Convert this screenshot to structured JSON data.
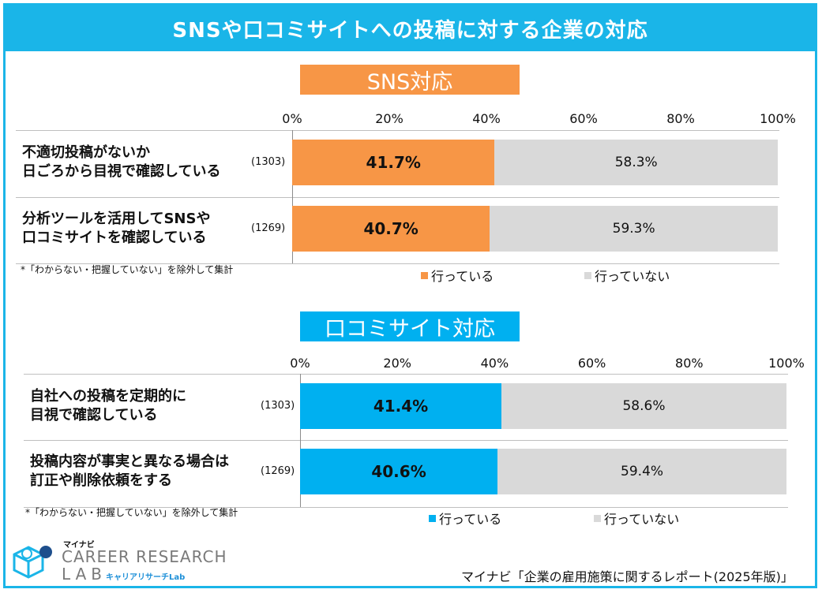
{
  "title": "SNSや口コミサイトへの投稿に対する企業の対応",
  "colors": {
    "sns": "#f79646",
    "kuchikomi": "#00b0f0",
    "not_done": "#d9d9d9",
    "frame": "#1ab5e8"
  },
  "chart_data": [
    {
      "type": "bar",
      "stacked": true,
      "orientation": "horizontal",
      "title": "SNS対応",
      "xlim": [
        0,
        100
      ],
      "ticks": [
        "0%",
        "20%",
        "40%",
        "60%",
        "80%",
        "100%"
      ],
      "categories": [
        "不適切投稿がないか\n日ごろから目視で確認している",
        "分析ツールを活用してSNSや\n口コミサイトを確認している"
      ],
      "n": [
        "(1303)",
        "(1269)"
      ],
      "series": [
        {
          "name": "行っている",
          "values": [
            41.7,
            40.7
          ],
          "labels": [
            "41.7%",
            "40.7%"
          ]
        },
        {
          "name": "行っていない",
          "values": [
            58.3,
            59.3
          ],
          "labels": [
            "58.3%",
            "59.3%"
          ]
        }
      ],
      "note": "*「わからない・把握していない」を除外して集計",
      "legend": "bottom"
    },
    {
      "type": "bar",
      "stacked": true,
      "orientation": "horizontal",
      "title": "口コミサイト対応",
      "xlim": [
        0,
        100
      ],
      "ticks": [
        "0%",
        "20%",
        "40%",
        "60%",
        "80%",
        "100%"
      ],
      "categories": [
        "自社への投稿を定期的に\n目視で確認している",
        "投稿内容が事実と異なる場合は\n訂正や削除依頼をする"
      ],
      "n": [
        "(1303)",
        "(1269)"
      ],
      "series": [
        {
          "name": "行っている",
          "values": [
            41.4,
            40.6
          ],
          "labels": [
            "41.4%",
            "40.6%"
          ]
        },
        {
          "name": "行っていない",
          "values": [
            58.6,
            59.4
          ],
          "labels": [
            "58.6%",
            "59.4%"
          ]
        }
      ],
      "note": "*「わからない・把握していない」を除外して集計",
      "legend": "bottom"
    }
  ],
  "logo": {
    "brand": "マイナビ",
    "name": "CAREER RESEARCH",
    "name2": "LAB",
    "kana": "キャリアリサーチLab"
  },
  "source": "マイナビ「企業の雇用施策に関するレポート(2025年版)」"
}
